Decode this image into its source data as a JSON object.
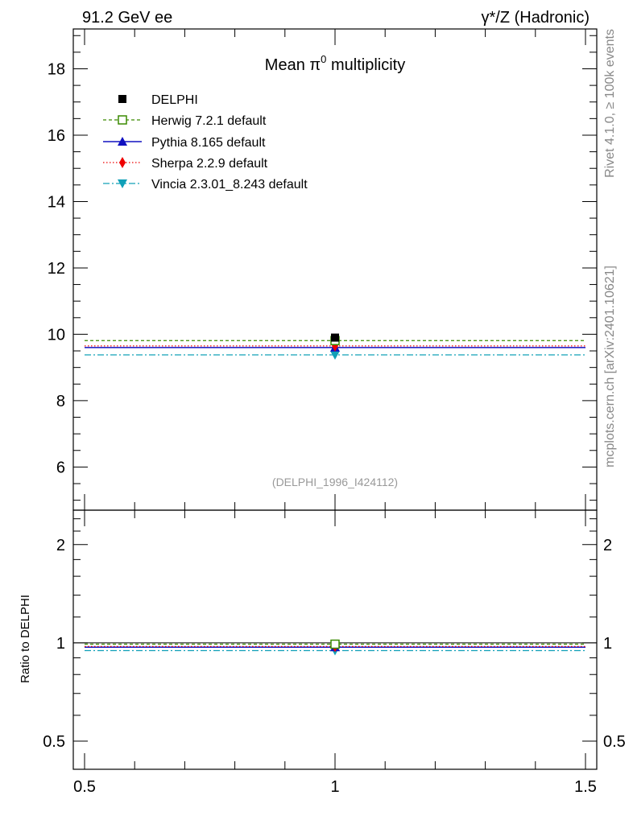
{
  "header": {
    "left": "91.2 GeV ee",
    "right": "γ*/Z (Hadronic)"
  },
  "side_text": {
    "rivet": "Rivet 4.1.0, ≥ 100k events",
    "mcplots": "mcplots.cern.ch [arXiv:2401.10621]"
  },
  "colors": {
    "delphi": "#000000",
    "herwig": "#3a8a00",
    "pythia": "#1010c0",
    "sherpa": "#ee0000",
    "vincia": "#10a0b8",
    "watermark": "#999999",
    "side": "#888888"
  },
  "chart_data": [
    {
      "type": "scatter",
      "title": "Mean π0 multiplicity",
      "title_parts": {
        "base": "Mean π",
        "sup": "0",
        "rest": " multiplicity"
      },
      "watermark": "(DELPHI_1996_I424112)",
      "xlim": [
        0.5,
        1.5
      ],
      "ylim": [
        4.7,
        19.2
      ],
      "yticks": [
        6,
        8,
        10,
        12,
        14,
        16,
        18
      ],
      "ytick_labels": [
        "6",
        "8",
        "10",
        "12",
        "14",
        "16",
        "18"
      ],
      "xlabel": "",
      "ylabel": "",
      "legend": [
        {
          "name": "DELPHI",
          "style": "data"
        },
        {
          "name": "Herwig 7.2.1 default",
          "style": "herwig"
        },
        {
          "name": "Pythia 8.165 default",
          "style": "pythia"
        },
        {
          "name": "Sherpa 2.2.9 default",
          "style": "sherpa"
        },
        {
          "name": "Vincia 2.3.01_8.243 default",
          "style": "vincia"
        }
      ],
      "series": [
        {
          "name": "DELPHI",
          "style": "data",
          "x": 1.0,
          "y": 9.9
        },
        {
          "name": "Herwig 7.2.1 default",
          "style": "herwig",
          "x": 1.0,
          "y": 9.81,
          "xrange": [
            0.5,
            1.5
          ]
        },
        {
          "name": "Pythia 8.165 default",
          "style": "pythia",
          "x": 1.0,
          "y": 9.6,
          "xrange": [
            0.5,
            1.5
          ]
        },
        {
          "name": "Sherpa 2.2.9 default",
          "style": "sherpa",
          "x": 1.0,
          "y": 9.65,
          "xrange": [
            0.5,
            1.5
          ]
        },
        {
          "name": "Vincia 2.3.01_8.243 default",
          "style": "vincia",
          "x": 1.0,
          "y": 9.38,
          "xrange": [
            0.5,
            1.5
          ]
        }
      ]
    },
    {
      "type": "scatter",
      "title": "",
      "xlim": [
        0.5,
        1.5
      ],
      "ylim": [
        0.41,
        2.55
      ],
      "yscale": "log",
      "yticks": [
        0.5,
        1,
        2
      ],
      "ytick_labels": [
        "0.5",
        "1",
        "2"
      ],
      "xticks": [
        0.5,
        1,
        1.5
      ],
      "xtick_labels": [
        "0.5",
        "1",
        "1.5"
      ],
      "ylabel": "Ratio to DELPHI",
      "series": [
        {
          "name": "Herwig 7.2.1 default",
          "style": "herwig",
          "x": 1.0,
          "y": 0.991,
          "xrange": [
            0.5,
            1.5
          ]
        },
        {
          "name": "Pythia 8.165 default",
          "style": "pythia",
          "x": 1.0,
          "y": 0.97,
          "xrange": [
            0.5,
            1.5
          ]
        },
        {
          "name": "Sherpa 2.2.9 default",
          "style": "sherpa",
          "x": 1.0,
          "y": 0.975,
          "xrange": [
            0.5,
            1.5
          ]
        },
        {
          "name": "Vincia 2.3.01_8.243 default",
          "style": "vincia",
          "x": 1.0,
          "y": 0.947,
          "xrange": [
            0.5,
            1.5
          ]
        }
      ]
    }
  ]
}
